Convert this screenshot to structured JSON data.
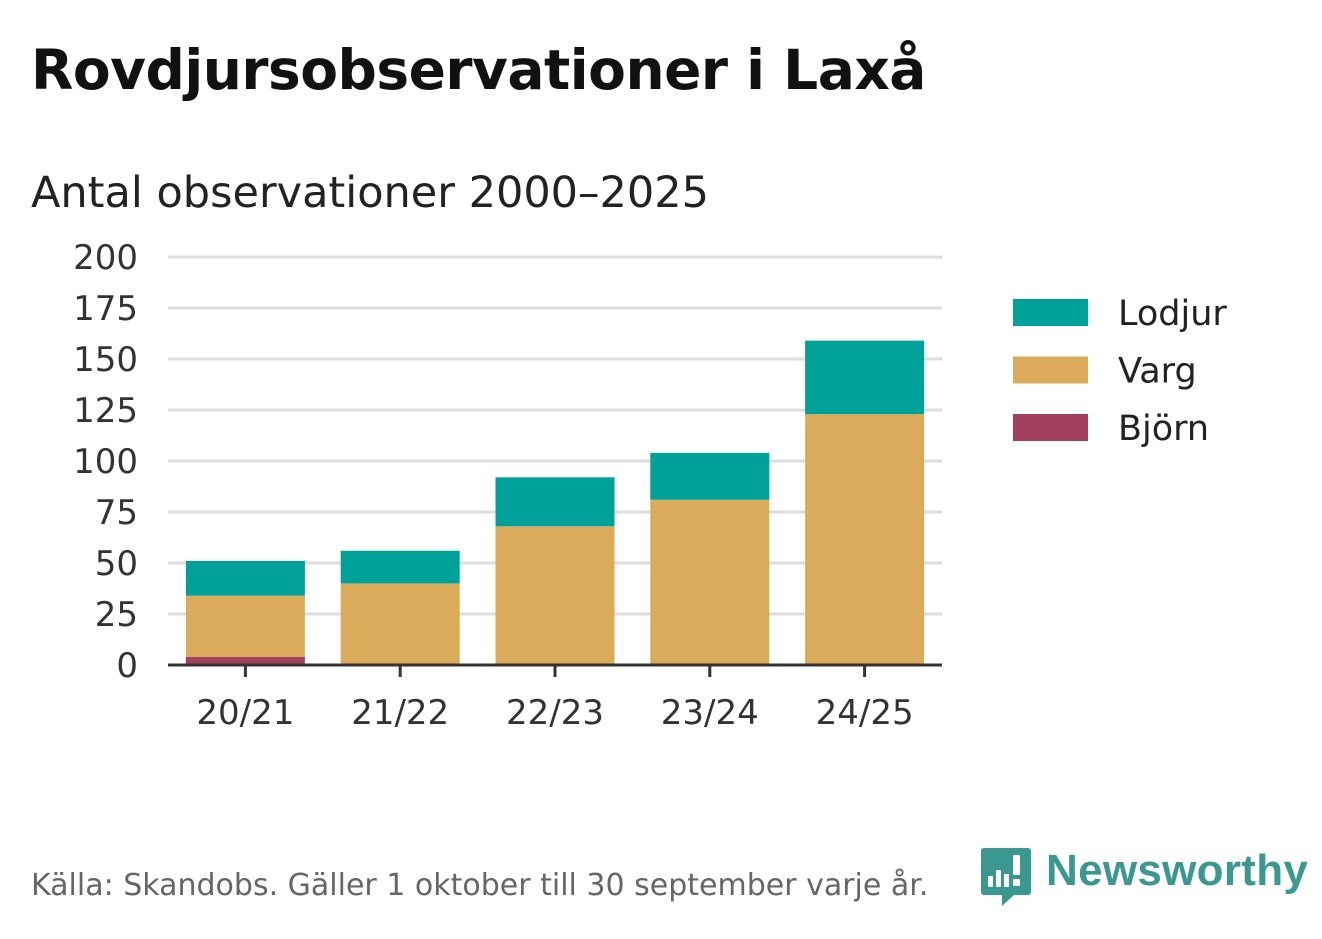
{
  "title": "Rovdjursobservationer i Laxå",
  "subtitle": "Antal observationer 2000–2025",
  "footer": "Källa: Skandobs. Gäller 1 oktober till 30 september varje år.",
  "brand": {
    "name": "Newsworthy",
    "icon": "newsworthy-logo-icon",
    "color": "#3b9891"
  },
  "chart_data": {
    "type": "bar",
    "stacked": true,
    "title": "Rovdjursobservationer i Laxå",
    "subtitle": "Antal observationer 2000–2025",
    "xlabel": "",
    "ylabel": "",
    "categories": [
      "20/21",
      "21/22",
      "22/23",
      "23/24",
      "24/25"
    ],
    "ylim": [
      0,
      200
    ],
    "yticks": [
      0,
      25,
      50,
      75,
      100,
      125,
      150,
      175,
      200
    ],
    "grid": true,
    "legend_position": "right",
    "series": [
      {
        "name": "Björn",
        "color": "#a3405e",
        "values": [
          4,
          0,
          0,
          0,
          0
        ]
      },
      {
        "name": "Varg",
        "color": "#d9ab5a",
        "values": [
          30,
          40,
          68,
          81,
          123
        ]
      },
      {
        "name": "Lodjur",
        "color": "#00a199",
        "values": [
          17,
          16,
          24,
          23,
          36
        ]
      }
    ],
    "legend_order": [
      "Lodjur",
      "Varg",
      "Björn"
    ]
  }
}
